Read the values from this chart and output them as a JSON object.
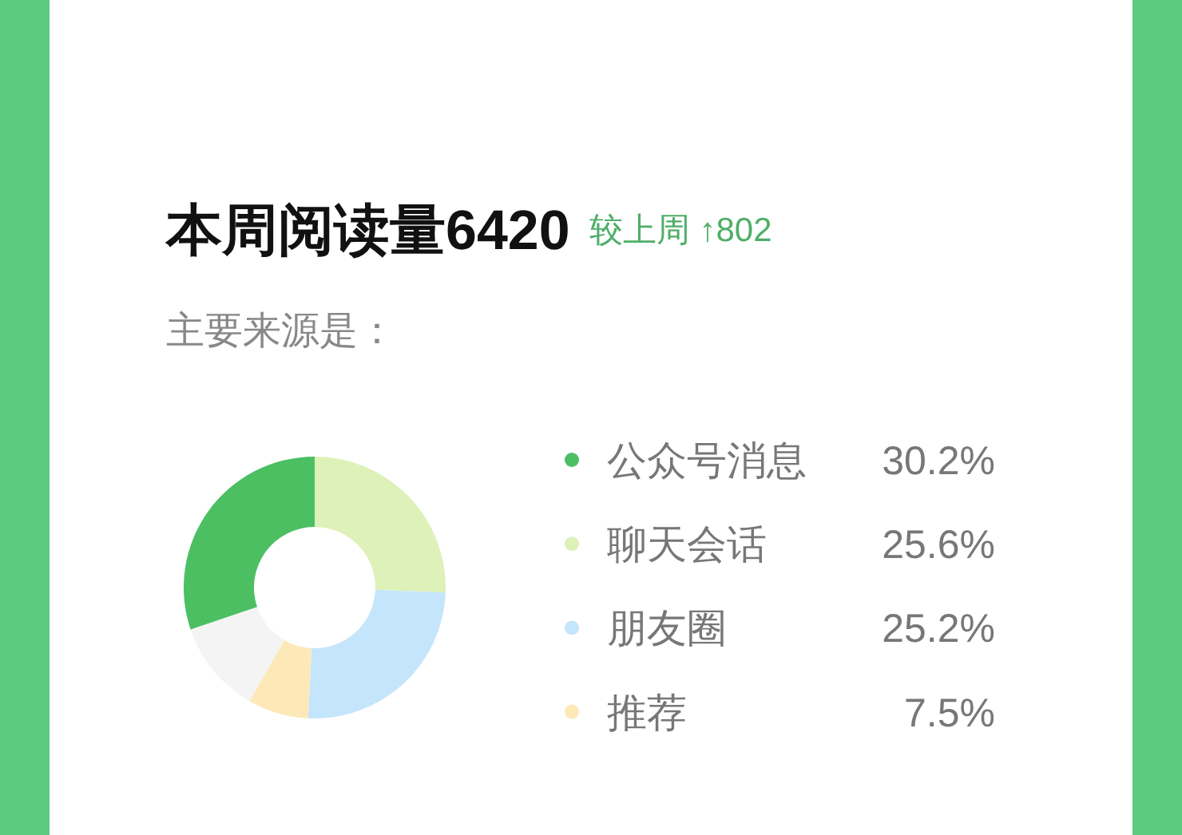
{
  "chart_data": {
    "type": "donut",
    "title": "本周阅读量6420",
    "subtitle": "主要来源是：",
    "annotations": [
      "较上周 ↑802"
    ],
    "categories": [
      "公众号消息",
      "聊天会话",
      "朋友圈",
      "推荐",
      null
    ],
    "values": [
      30.2,
      25.6,
      25.2,
      7.5,
      11.5
    ],
    "colors": [
      "#4dbf63",
      "#ddf1b9",
      "#c4e5fb",
      "#fde9b8",
      "#f4f4f4"
    ],
    "value_labels": [
      "30.2%",
      "25.6%",
      "25.2%",
      "7.5%",
      null
    ],
    "legend": "right"
  }
}
